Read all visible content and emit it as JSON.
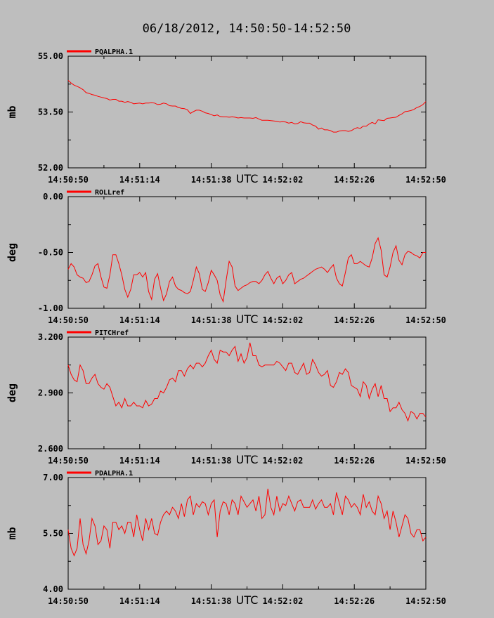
{
  "title": "06/18/2012, 14:50:50-14:52:50",
  "colors": {
    "background": "#bebebe",
    "series": "#ff0000",
    "axis": "#000000"
  },
  "chart_data": [
    {
      "type": "line",
      "series": [
        {
          "name": "PQALPHA.1",
          "x": [
            0,
            1,
            2,
            3,
            4,
            5,
            6,
            7,
            8,
            9,
            10,
            11,
            12,
            13,
            14,
            15,
            16,
            17,
            18,
            19,
            20,
            21,
            22,
            23,
            24,
            25,
            26,
            27,
            28,
            29,
            30,
            31,
            32,
            33,
            34,
            35,
            36,
            37,
            38,
            39,
            40,
            41,
            42,
            43,
            44,
            45,
            46,
            47,
            48,
            49,
            50,
            51,
            52,
            53,
            54,
            55,
            56,
            57,
            58,
            59,
            60,
            61,
            62,
            63,
            64,
            65,
            66,
            67,
            68,
            69,
            70,
            71,
            72,
            73,
            74,
            75,
            76,
            77,
            78,
            79,
            80,
            81,
            82,
            83,
            84,
            85,
            86,
            87,
            88,
            89,
            90,
            91,
            92,
            93,
            94,
            95,
            96,
            97,
            98,
            99,
            100,
            101,
            102,
            103,
            104,
            105,
            106,
            107,
            108,
            109,
            110,
            111,
            112,
            113,
            114,
            115,
            116,
            117,
            118,
            119,
            120
          ],
          "values": [
            54.35,
            54.28,
            54.22,
            54.19,
            54.15,
            54.1,
            54.02,
            54.0,
            53.97,
            53.95,
            53.92,
            53.9,
            53.88,
            53.86,
            53.82,
            53.84,
            53.84,
            53.79,
            53.79,
            53.76,
            53.78,
            53.76,
            53.72,
            53.73,
            53.74,
            53.72,
            53.74,
            53.74,
            53.75,
            53.74,
            53.7,
            53.71,
            53.74,
            53.72,
            53.67,
            53.66,
            53.66,
            53.62,
            53.6,
            53.59,
            53.56,
            53.46,
            53.51,
            53.55,
            53.55,
            53.52,
            53.48,
            53.46,
            53.43,
            53.4,
            53.42,
            53.38,
            53.37,
            53.37,
            53.36,
            53.37,
            53.36,
            53.34,
            53.35,
            53.34,
            53.34,
            53.34,
            53.33,
            53.35,
            53.31,
            53.28,
            53.28,
            53.28,
            53.27,
            53.26,
            53.25,
            53.23,
            53.24,
            53.23,
            53.2,
            53.22,
            53.18,
            53.19,
            53.24,
            53.21,
            53.2,
            53.2,
            53.15,
            53.12,
            53.04,
            53.07,
            53.02,
            53.02,
            53.0,
            52.96,
            52.96,
            52.99,
            53.0,
            53.0,
            52.98,
            53.0,
            53.05,
            53.08,
            53.06,
            53.12,
            53.12,
            53.18,
            53.22,
            53.18,
            53.29,
            53.28,
            53.27,
            53.33,
            53.34,
            53.35,
            53.36,
            53.41,
            53.45,
            53.51,
            53.52,
            53.54,
            53.57,
            53.62,
            53.65,
            53.7,
            53.78
          ]
        }
      ],
      "xticks": [
        "14:50:50",
        "14:51:14",
        "14:51:38",
        "14:52:02",
        "14:52:26",
        "14:52:50"
      ],
      "xunit": "UTC",
      "yticks": [
        "52.00",
        "53.50",
        "55.00"
      ],
      "ylabel": "mb",
      "ylim": [
        52.0,
        55.0
      ],
      "xlim": [
        0,
        120
      ]
    },
    {
      "type": "line",
      "series": [
        {
          "name": "ROLLref",
          "x": [
            0,
            1,
            2,
            3,
            4,
            5,
            6,
            7,
            8,
            9,
            10,
            11,
            12,
            13,
            14,
            15,
            16,
            17,
            18,
            19,
            20,
            21,
            22,
            23,
            24,
            25,
            26,
            27,
            28,
            29,
            30,
            31,
            32,
            33,
            34,
            35,
            36,
            37,
            38,
            39,
            40,
            41,
            42,
            43,
            44,
            45,
            46,
            47,
            48,
            49,
            50,
            51,
            52,
            53,
            54,
            55,
            56,
            57,
            58,
            59,
            60,
            61,
            62,
            63,
            64,
            65,
            66,
            67,
            68,
            69,
            70,
            71,
            72,
            73,
            74,
            75,
            76,
            77,
            78,
            79,
            80,
            81,
            82,
            83,
            84,
            85,
            86,
            87,
            88,
            89,
            90,
            91,
            92,
            93,
            94,
            95,
            96,
            97,
            98,
            99,
            100,
            101,
            102,
            103,
            104,
            105,
            106,
            107,
            108,
            109,
            110,
            111,
            112,
            113,
            114,
            115,
            116,
            117,
            118,
            119,
            120
          ],
          "values": [
            -0.65,
            -0.6,
            -0.63,
            -0.7,
            -0.72,
            -0.73,
            -0.77,
            -0.76,
            -0.7,
            -0.62,
            -0.6,
            -0.72,
            -0.81,
            -0.82,
            -0.7,
            -0.52,
            -0.52,
            -0.6,
            -0.7,
            -0.83,
            -0.9,
            -0.83,
            -0.7,
            -0.7,
            -0.68,
            -0.72,
            -0.68,
            -0.85,
            -0.92,
            -0.74,
            -0.69,
            -0.82,
            -0.93,
            -0.87,
            -0.76,
            -0.72,
            -0.8,
            -0.83,
            -0.84,
            -0.86,
            -0.87,
            -0.85,
            -0.75,
            -0.63,
            -0.69,
            -0.83,
            -0.85,
            -0.77,
            -0.66,
            -0.7,
            -0.75,
            -0.88,
            -0.94,
            -0.75,
            -0.58,
            -0.63,
            -0.8,
            -0.84,
            -0.82,
            -0.8,
            -0.79,
            -0.77,
            -0.76,
            -0.76,
            -0.78,
            -0.75,
            -0.7,
            -0.67,
            -0.73,
            -0.78,
            -0.73,
            -0.71,
            -0.78,
            -0.75,
            -0.7,
            -0.68,
            -0.78,
            -0.76,
            -0.74,
            -0.73,
            -0.71,
            -0.69,
            -0.67,
            -0.65,
            -0.64,
            -0.63,
            -0.65,
            -0.68,
            -0.64,
            -0.61,
            -0.73,
            -0.78,
            -0.8,
            -0.68,
            -0.55,
            -0.52,
            -0.6,
            -0.6,
            -0.58,
            -0.6,
            -0.62,
            -0.63,
            -0.55,
            -0.42,
            -0.37,
            -0.48,
            -0.7,
            -0.72,
            -0.63,
            -0.5,
            -0.44,
            -0.57,
            -0.61,
            -0.52,
            -0.49,
            -0.5,
            -0.52,
            -0.53,
            -0.55,
            -0.5,
            -0.5
          ]
        }
      ],
      "xticks": [
        "14:50:50",
        "14:51:14",
        "14:51:38",
        "14:52:02",
        "14:52:26",
        "14:52:50"
      ],
      "xunit": "UTC",
      "yticks": [
        "-1.00",
        "-0.50",
        "0.00"
      ],
      "ylabel": "deg",
      "ylim": [
        -1.0,
        0.0
      ],
      "xlim": [
        0,
        120
      ]
    },
    {
      "type": "line",
      "series": [
        {
          "name": "PITCHref",
          "x": [
            0,
            1,
            2,
            3,
            4,
            5,
            6,
            7,
            8,
            9,
            10,
            11,
            12,
            13,
            14,
            15,
            16,
            17,
            18,
            19,
            20,
            21,
            22,
            23,
            24,
            25,
            26,
            27,
            28,
            29,
            30,
            31,
            32,
            33,
            34,
            35,
            36,
            37,
            38,
            39,
            40,
            41,
            42,
            43,
            44,
            45,
            46,
            47,
            48,
            49,
            50,
            51,
            52,
            53,
            54,
            55,
            56,
            57,
            58,
            59,
            60,
            61,
            62,
            63,
            64,
            65,
            66,
            67,
            68,
            69,
            70,
            71,
            72,
            73,
            74,
            75,
            76,
            77,
            78,
            79,
            80,
            81,
            82,
            83,
            84,
            85,
            86,
            87,
            88,
            89,
            90,
            91,
            92,
            93,
            94,
            95,
            96,
            97,
            98,
            99,
            100,
            101,
            102,
            103,
            104,
            105,
            106,
            107,
            108,
            109,
            110,
            111,
            112,
            113,
            114,
            115,
            116,
            117,
            118,
            119,
            120
          ],
          "values": [
            3.05,
            3.0,
            2.97,
            2.96,
            3.05,
            3.02,
            2.95,
            2.95,
            2.98,
            3.0,
            2.95,
            2.93,
            2.92,
            2.95,
            2.93,
            2.88,
            2.83,
            2.85,
            2.82,
            2.87,
            2.83,
            2.83,
            2.85,
            2.83,
            2.83,
            2.82,
            2.86,
            2.83,
            2.84,
            2.87,
            2.87,
            2.91,
            2.9,
            2.93,
            2.97,
            2.98,
            2.96,
            3.02,
            3.02,
            2.99,
            3.03,
            3.05,
            3.03,
            3.06,
            3.06,
            3.04,
            3.06,
            3.1,
            3.13,
            3.08,
            3.06,
            3.13,
            3.12,
            3.12,
            3.1,
            3.13,
            3.15,
            3.07,
            3.11,
            3.06,
            3.09,
            3.17,
            3.1,
            3.1,
            3.05,
            3.04,
            3.05,
            3.05,
            3.05,
            3.05,
            3.07,
            3.06,
            3.04,
            3.02,
            3.06,
            3.06,
            3.01,
            3.0,
            3.03,
            3.06,
            3.0,
            3.01,
            3.08,
            3.05,
            3.01,
            2.99,
            3.0,
            3.02,
            2.94,
            2.93,
            2.96,
            3.01,
            3.0,
            3.03,
            3.01,
            2.94,
            2.93,
            2.92,
            2.88,
            2.96,
            2.94,
            2.87,
            2.92,
            2.95,
            2.88,
            2.94,
            2.87,
            2.87,
            2.8,
            2.82,
            2.82,
            2.85,
            2.81,
            2.79,
            2.75,
            2.8,
            2.79,
            2.76,
            2.79,
            2.79,
            2.77
          ]
        }
      ],
      "xticks": [
        "14:50:50",
        "14:51:14",
        "14:51:38",
        "14:52:02",
        "14:52:26",
        "14:52:50"
      ],
      "xunit": "UTC",
      "yticks": [
        "2.600",
        "2.900",
        "3.200"
      ],
      "ylabel": "deg",
      "ylim": [
        2.6,
        3.2
      ],
      "xlim": [
        0,
        120
      ]
    },
    {
      "type": "line",
      "series": [
        {
          "name": "PDALPHA.1",
          "x": [
            0,
            1,
            2,
            3,
            4,
            5,
            6,
            7,
            8,
            9,
            10,
            11,
            12,
            13,
            14,
            15,
            16,
            17,
            18,
            19,
            20,
            21,
            22,
            23,
            24,
            25,
            26,
            27,
            28,
            29,
            30,
            31,
            32,
            33,
            34,
            35,
            36,
            37,
            38,
            39,
            40,
            41,
            42,
            43,
            44,
            45,
            46,
            47,
            48,
            49,
            50,
            51,
            52,
            53,
            54,
            55,
            56,
            57,
            58,
            59,
            60,
            61,
            62,
            63,
            64,
            65,
            66,
            67,
            68,
            69,
            70,
            71,
            72,
            73,
            74,
            75,
            76,
            77,
            78,
            79,
            80,
            81,
            82,
            83,
            84,
            85,
            86,
            87,
            88,
            89,
            90,
            91,
            92,
            93,
            94,
            95,
            96,
            97,
            98,
            99,
            100,
            101,
            102,
            103,
            104,
            105,
            106,
            107,
            108,
            109,
            110,
            111,
            112,
            113,
            114,
            115,
            116,
            117,
            118,
            119,
            120
          ],
          "values": [
            5.6,
            5.1,
            4.9,
            5.1,
            5.9,
            5.2,
            4.95,
            5.3,
            5.9,
            5.7,
            5.2,
            5.3,
            5.7,
            5.6,
            5.1,
            5.8,
            5.8,
            5.6,
            5.7,
            5.5,
            5.8,
            5.8,
            5.4,
            6.0,
            5.6,
            5.3,
            5.9,
            5.6,
            5.9,
            5.5,
            5.45,
            5.8,
            6.0,
            6.1,
            6.0,
            6.2,
            6.1,
            5.9,
            6.3,
            5.95,
            6.4,
            6.5,
            6.0,
            6.3,
            6.2,
            6.35,
            6.3,
            6.0,
            6.3,
            6.4,
            5.4,
            6.1,
            6.35,
            6.3,
            6.0,
            6.4,
            6.3,
            6.0,
            6.5,
            6.35,
            6.2,
            6.3,
            6.4,
            6.1,
            6.5,
            5.9,
            6.0,
            6.7,
            6.2,
            6.0,
            6.5,
            6.1,
            6.3,
            6.25,
            6.5,
            6.3,
            6.1,
            6.35,
            6.4,
            6.2,
            6.2,
            6.2,
            6.4,
            6.15,
            6.3,
            6.4,
            6.2,
            6.2,
            6.3,
            6.0,
            6.6,
            6.3,
            6.0,
            6.5,
            6.4,
            6.2,
            6.3,
            6.2,
            6.0,
            6.55,
            6.2,
            6.35,
            6.1,
            6.0,
            6.5,
            6.3,
            5.9,
            6.1,
            5.6,
            6.1,
            5.8,
            5.4,
            5.7,
            6.0,
            5.9,
            5.5,
            5.4,
            5.6,
            5.6,
            5.3,
            5.4
          ]
        }
      ],
      "xticks": [
        "14:50:50",
        "14:51:14",
        "14:51:38",
        "14:52:02",
        "14:52:26",
        "14:52:50"
      ],
      "xunit": "UTC",
      "yticks": [
        "4.00",
        "5.50",
        "7.00"
      ],
      "ylabel": "mb",
      "ylim": [
        4.0,
        7.0
      ],
      "xlim": [
        0,
        120
      ]
    }
  ]
}
